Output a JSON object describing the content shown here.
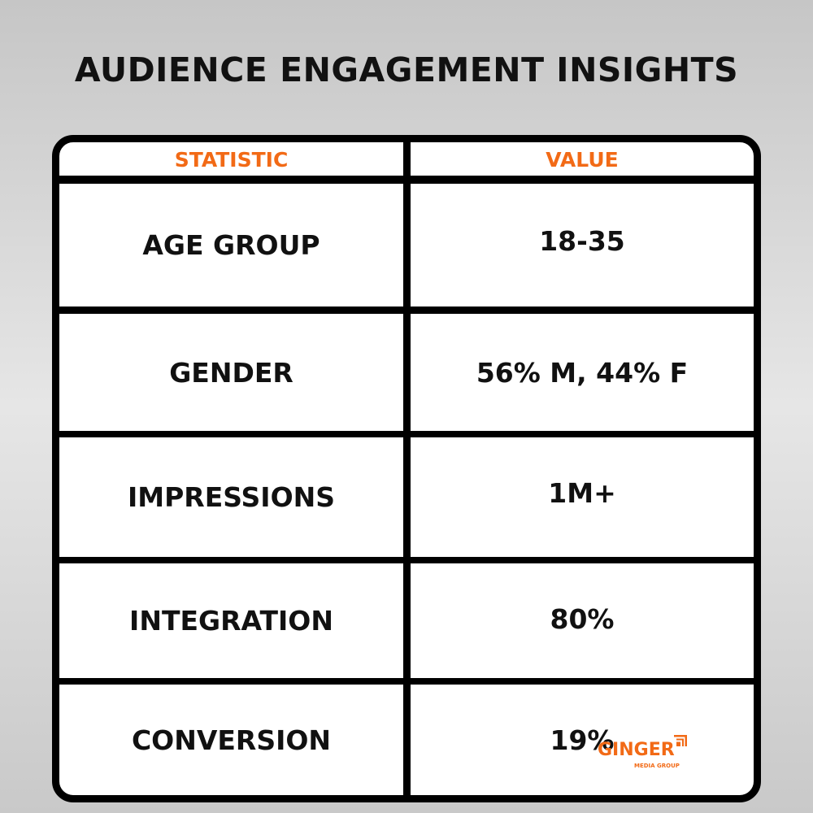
{
  "title": "AUDIENCE ENGAGEMENT INSIGHTS",
  "headers": {
    "statistic": "STATISTIC",
    "value": "VALUE"
  },
  "rows": [
    {
      "statistic": "AGE GROUP",
      "value": "18-35"
    },
    {
      "statistic": "GENDER",
      "value": "56% M, 44% F"
    },
    {
      "statistic": "IMPRESSIONS",
      "value": "1M+"
    },
    {
      "statistic": "INTEGRATION",
      "value": "80%"
    },
    {
      "statistic": "CONVERSION",
      "value": "19%"
    }
  ],
  "logo": {
    "name": "GINGER",
    "sub": "MEDIA GROUP"
  },
  "colors": {
    "accent": "#f26a16",
    "text": "#111111"
  }
}
